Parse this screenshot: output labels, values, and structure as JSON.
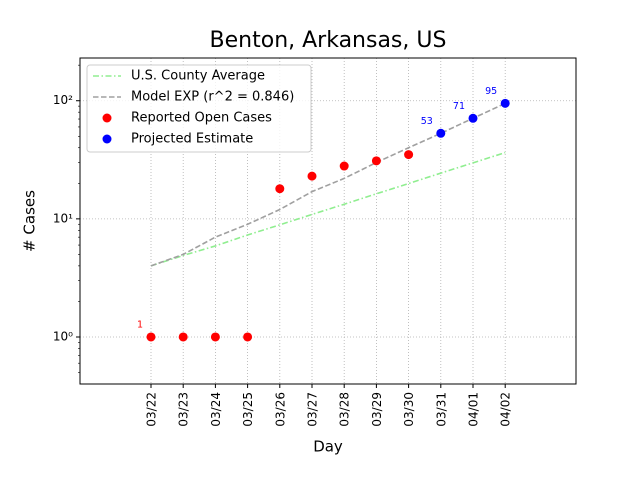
{
  "chart_data": {
    "type": "line",
    "title": "Benton, Arkansas, US",
    "x_label": "Day",
    "y_label": "# Cases",
    "categories": [
      "03/22",
      "03/23",
      "03/24",
      "03/25",
      "03/26",
      "03/27",
      "03/28",
      "03/29",
      "03/30",
      "03/31",
      "04/01",
      "04/02"
    ],
    "log_y": true,
    "grid": true,
    "legend": "upper left",
    "ylim": [
      0.4,
      230
    ],
    "yticks": [
      {
        "value": 1,
        "label": "10⁰"
      },
      {
        "value": 10,
        "label": "10¹"
      },
      {
        "value": 100,
        "label": "10²"
      }
    ],
    "series": [
      {
        "name": "U.S. County Average",
        "color": "#90ee90",
        "style": "dashdot",
        "values": [
          4,
          4.9,
          5.9,
          7.3,
          8.9,
          10.9,
          13.3,
          16.3,
          19.9,
          24.4,
          29.8,
          36.4
        ]
      },
      {
        "name": "Model EXP (r^2 = 0.846)",
        "color": "#a0a0a0",
        "style": "dashed",
        "values": [
          4,
          5,
          7,
          9,
          12,
          17,
          22,
          30,
          40,
          53,
          71,
          95
        ]
      },
      {
        "name": "Reported Open Cases",
        "color": "#ff0000",
        "style": "marker",
        "values": [
          1,
          1,
          1,
          1,
          18,
          23,
          28,
          31,
          35,
          null,
          null,
          null
        ]
      },
      {
        "name": "Projected Estimate",
        "color": "#0000ff",
        "style": "marker",
        "values": [
          null,
          null,
          null,
          null,
          null,
          null,
          null,
          null,
          null,
          53,
          71,
          95
        ]
      }
    ]
  }
}
